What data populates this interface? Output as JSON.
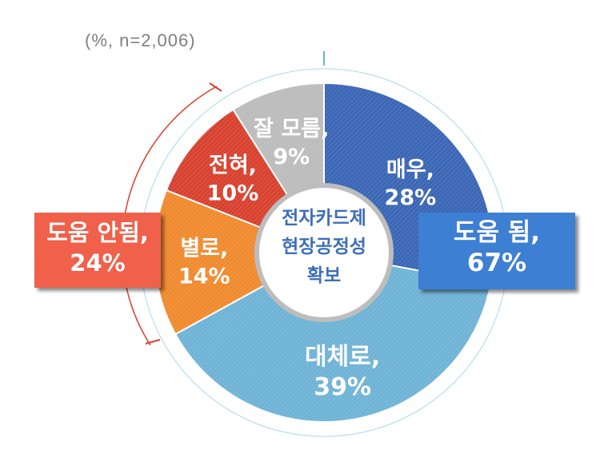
{
  "note": "(%, n=2,006)",
  "center_label": [
    "전자카드제",
    "현장공정성",
    "확보"
  ],
  "chart_data": {
    "type": "pie",
    "slices": [
      {
        "name": "매우,",
        "value": 28,
        "label": "28%",
        "color": "#3a66b5"
      },
      {
        "name": "대체로,",
        "value": 39,
        "label": "39%",
        "color": "#6fb3d6"
      },
      {
        "name": "별로,",
        "value": 14,
        "label": "14%",
        "color": "#f08a2e"
      },
      {
        "name": "전혀,",
        "value": 10,
        "label": "10%",
        "color": "#d8412e"
      },
      {
        "name": "잘 모름,",
        "value": 9,
        "label": "9%",
        "color": "#bcbcbc"
      }
    ]
  },
  "callouts": {
    "negative": {
      "line1": "도움 안됨,",
      "line2": "24%"
    },
    "positive": {
      "line1": "도움 됨,",
      "line2": "67%"
    }
  }
}
